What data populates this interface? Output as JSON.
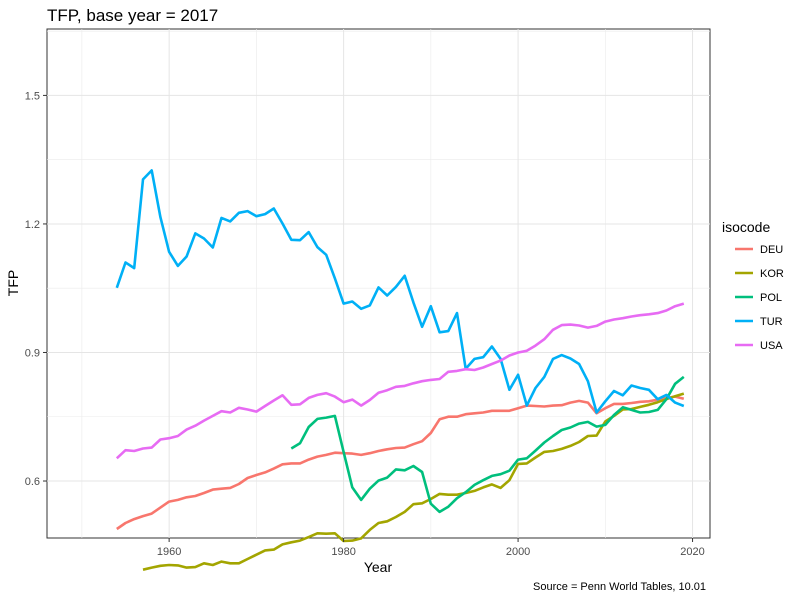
{
  "chart_data": {
    "type": "line",
    "title": "TFP, base year = 2017",
    "xlabel": "Year",
    "ylabel": "TFP",
    "caption": "Source = Penn World Tables, 10.01",
    "legend_title": "isocode",
    "legend_position": "right",
    "grid": true,
    "xlim": [
      1946,
      2022
    ],
    "ylim": [
      0.467,
      1.655
    ],
    "xticks": [
      1960,
      1980,
      2000,
      2020
    ],
    "yticks": [
      0.6,
      0.9,
      1.2,
      1.5
    ],
    "xtick_labels": [
      "1960",
      "1980",
      "2000",
      "2020"
    ],
    "ytick_labels": [
      "0.6",
      "0.9",
      "1.2",
      "1.5"
    ],
    "series": [
      {
        "name": "DEU",
        "color": "#F8766D",
        "x": [
          1954,
          1955,
          1956,
          1957,
          1958,
          1959,
          1960,
          1961,
          1962,
          1963,
          1964,
          1965,
          1966,
          1967,
          1968,
          1969,
          1970,
          1971,
          1972,
          1973,
          1974,
          1975,
          1976,
          1977,
          1978,
          1979,
          1980,
          1981,
          1982,
          1983,
          1984,
          1985,
          1986,
          1987,
          1988,
          1989,
          1990,
          1991,
          1992,
          1993,
          1994,
          1995,
          1996,
          1997,
          1998,
          1999,
          2000,
          2001,
          2002,
          2003,
          2004,
          2005,
          2006,
          2007,
          2008,
          2009,
          2010,
          2011,
          2012,
          2013,
          2014,
          2015,
          2016,
          2017,
          2018,
          2019
        ],
        "y": [
          0.488,
          0.502,
          0.511,
          0.518,
          0.524,
          0.538,
          0.552,
          0.556,
          0.562,
          0.565,
          0.572,
          0.58,
          0.582,
          0.584,
          0.593,
          0.607,
          0.614,
          0.62,
          0.629,
          0.639,
          0.641,
          0.641,
          0.65,
          0.657,
          0.661,
          0.666,
          0.665,
          0.664,
          0.661,
          0.665,
          0.67,
          0.674,
          0.677,
          0.678,
          0.686,
          0.693,
          0.712,
          0.744,
          0.75,
          0.75,
          0.756,
          0.758,
          0.76,
          0.764,
          0.764,
          0.764,
          0.77,
          0.776,
          0.775,
          0.774,
          0.776,
          0.777,
          0.783,
          0.787,
          0.783,
          0.758,
          0.77,
          0.78,
          0.78,
          0.782,
          0.785,
          0.786,
          0.79,
          0.794,
          0.797,
          0.792
        ]
      },
      {
        "name": "KOR",
        "color": "#A3A500",
        "x": [
          1957,
          1958,
          1959,
          1960,
          1961,
          1962,
          1963,
          1964,
          1965,
          1966,
          1967,
          1968,
          1969,
          1970,
          1971,
          1972,
          1973,
          1974,
          1975,
          1976,
          1977,
          1978,
          1979,
          1980,
          1981,
          1982,
          1983,
          1984,
          1985,
          1986,
          1987,
          1988,
          1989,
          1990,
          1991,
          1992,
          1993,
          1994,
          1995,
          1996,
          1997,
          1998,
          1999,
          2000,
          2001,
          2002,
          2003,
          2004,
          2005,
          2006,
          2007,
          2008,
          2009,
          2010,
          2011,
          2012,
          2013,
          2014,
          2015,
          2016,
          2017,
          2018,
          2019
        ],
        "y": [
          0.393,
          0.398,
          0.402,
          0.404,
          0.403,
          0.398,
          0.399,
          0.408,
          0.404,
          0.412,
          0.408,
          0.408,
          0.418,
          0.428,
          0.438,
          0.44,
          0.452,
          0.457,
          0.461,
          0.469,
          0.478,
          0.477,
          0.478,
          0.46,
          0.461,
          0.466,
          0.486,
          0.502,
          0.506,
          0.516,
          0.528,
          0.546,
          0.548,
          0.558,
          0.57,
          0.568,
          0.568,
          0.572,
          0.577,
          0.585,
          0.592,
          0.584,
          0.602,
          0.64,
          0.641,
          0.655,
          0.668,
          0.67,
          0.675,
          0.682,
          0.691,
          0.705,
          0.706,
          0.739,
          0.752,
          0.767,
          0.768,
          0.773,
          0.778,
          0.784,
          0.791,
          0.798,
          0.804
        ]
      },
      {
        "name": "POL",
        "color": "#00BF7D",
        "x": [
          1974,
          1975,
          1976,
          1977,
          1978,
          1979,
          1980,
          1981,
          1982,
          1983,
          1984,
          1985,
          1986,
          1987,
          1988,
          1989,
          1990,
          1991,
          1992,
          1993,
          1994,
          1995,
          1996,
          1997,
          1998,
          1999,
          2000,
          2001,
          2002,
          2003,
          2004,
          2005,
          2006,
          2007,
          2008,
          2009,
          2010,
          2011,
          2012,
          2013,
          2014,
          2015,
          2016,
          2017,
          2018,
          2019
        ],
        "y": [
          0.676,
          0.688,
          0.726,
          0.745,
          0.748,
          0.752,
          0.668,
          0.585,
          0.556,
          0.582,
          0.601,
          0.608,
          0.627,
          0.625,
          0.635,
          0.621,
          0.547,
          0.528,
          0.54,
          0.56,
          0.574,
          0.591,
          0.602,
          0.612,
          0.616,
          0.624,
          0.65,
          0.653,
          0.671,
          0.69,
          0.705,
          0.719,
          0.725,
          0.734,
          0.738,
          0.727,
          0.731,
          0.754,
          0.772,
          0.766,
          0.76,
          0.761,
          0.766,
          0.791,
          0.827,
          0.843
        ]
      },
      {
        "name": "TUR",
        "color": "#00B0F6",
        "x": [
          1954,
          1955,
          1956,
          1957,
          1958,
          1959,
          1960,
          1961,
          1962,
          1963,
          1964,
          1965,
          1966,
          1967,
          1968,
          1969,
          1970,
          1971,
          1972,
          1973,
          1974,
          1975,
          1976,
          1977,
          1978,
          1979,
          1980,
          1981,
          1982,
          1983,
          1984,
          1985,
          1986,
          1987,
          1988,
          1989,
          1990,
          1991,
          1992,
          1993,
          1994,
          1995,
          1996,
          1997,
          1998,
          1999,
          2000,
          2001,
          2002,
          2003,
          2004,
          2005,
          2006,
          2007,
          2008,
          2009,
          2010,
          2011,
          2012,
          2013,
          2014,
          2015,
          2016,
          2017,
          2018,
          2019
        ],
        "y": [
          1.051,
          1.11,
          1.097,
          1.304,
          1.325,
          1.216,
          1.135,
          1.102,
          1.124,
          1.178,
          1.166,
          1.145,
          1.214,
          1.206,
          1.226,
          1.23,
          1.218,
          1.223,
          1.236,
          1.201,
          1.163,
          1.162,
          1.181,
          1.146,
          1.128,
          1.073,
          1.014,
          1.019,
          1.002,
          1.01,
          1.052,
          1.033,
          1.053,
          1.079,
          1.017,
          0.96,
          1.008,
          0.947,
          0.95,
          0.992,
          0.862,
          0.885,
          0.889,
          0.914,
          0.885,
          0.813,
          0.848,
          0.776,
          0.817,
          0.843,
          0.885,
          0.894,
          0.886,
          0.873,
          0.833,
          0.76,
          0.786,
          0.81,
          0.8,
          0.823,
          0.817,
          0.813,
          0.791,
          0.801,
          0.783,
          0.775
        ]
      },
      {
        "name": "USA",
        "color": "#E76BF3",
        "x": [
          1954,
          1955,
          1956,
          1957,
          1958,
          1959,
          1960,
          1961,
          1962,
          1963,
          1964,
          1965,
          1966,
          1967,
          1968,
          1969,
          1970,
          1971,
          1972,
          1973,
          1974,
          1975,
          1976,
          1977,
          1978,
          1979,
          1980,
          1981,
          1982,
          1983,
          1984,
          1985,
          1986,
          1987,
          1988,
          1989,
          1990,
          1991,
          1992,
          1993,
          1994,
          1995,
          1996,
          1997,
          1998,
          1999,
          2000,
          2001,
          2002,
          2003,
          2004,
          2005,
          2006,
          2007,
          2008,
          2009,
          2010,
          2011,
          2012,
          2013,
          2014,
          2015,
          2016,
          2017,
          2018,
          2019
        ],
        "y": [
          0.653,
          0.672,
          0.67,
          0.676,
          0.678,
          0.697,
          0.7,
          0.705,
          0.72,
          0.729,
          0.741,
          0.752,
          0.763,
          0.76,
          0.771,
          0.767,
          0.762,
          0.775,
          0.788,
          0.8,
          0.778,
          0.779,
          0.794,
          0.801,
          0.805,
          0.797,
          0.784,
          0.79,
          0.776,
          0.789,
          0.806,
          0.812,
          0.82,
          0.822,
          0.828,
          0.833,
          0.836,
          0.838,
          0.855,
          0.857,
          0.861,
          0.859,
          0.865,
          0.873,
          0.881,
          0.893,
          0.9,
          0.904,
          0.916,
          0.931,
          0.953,
          0.964,
          0.965,
          0.963,
          0.958,
          0.962,
          0.972,
          0.977,
          0.98,
          0.984,
          0.987,
          0.989,
          0.992,
          0.998,
          1.008,
          1.014
        ]
      }
    ]
  }
}
